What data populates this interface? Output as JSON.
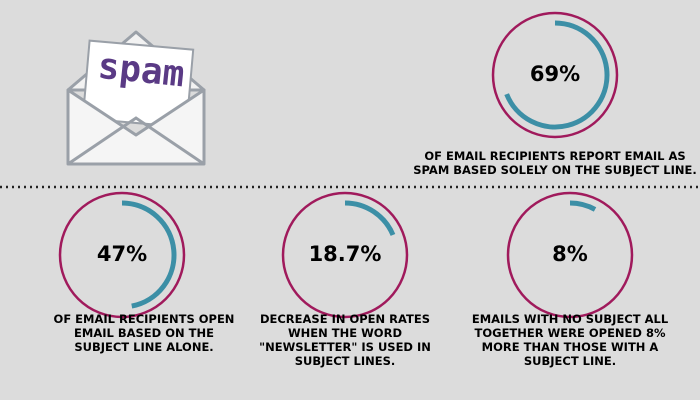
{
  "icon_text": "spam",
  "stats": [
    {
      "value": 69,
      "value_label": "69%",
      "description": [
        "OF EMAIL RECIPIENTS REPORT EMAIL AS",
        "SPAM BASED SOLELY ON THE SUBJECT LINE."
      ]
    },
    {
      "value": 47,
      "value_label": "47%",
      "description": [
        "OF EMAIL RECIPIENTS OPEN",
        "EMAIL BASED ON THE",
        "SUBJECT LINE ALONE."
      ]
    },
    {
      "value": 18.7,
      "value_label": "18.7%",
      "description": [
        "DECREASE IN OPEN RATES",
        "WHEN THE WORD",
        "\"NEWSLETTER\" IS USED IN",
        "SUBJECT LINES."
      ]
    },
    {
      "value": 8,
      "value_label": "8%",
      "description": [
        "EMAILS WITH NO SUBJECT ALL",
        "TOGETHER WERE OPENED 8%",
        "MORE THAN THOSE WITH A",
        "SUBJECT LINE."
      ]
    }
  ]
}
